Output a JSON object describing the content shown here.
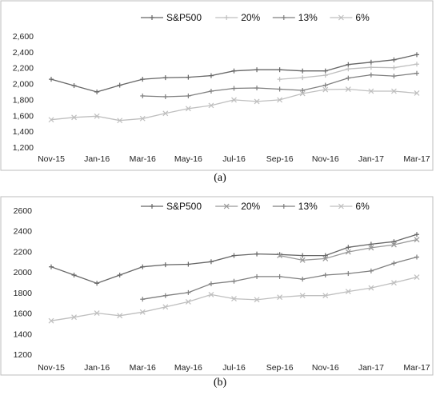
{
  "chart_data": [
    {
      "type": "line",
      "caption": "(a)",
      "x": [
        "Nov-15",
        "Dec-15",
        "Jan-16",
        "Feb-16",
        "Mar-16",
        "Apr-16",
        "May-16",
        "Jun-16",
        "Jul-16",
        "Aug-16",
        "Sep-16",
        "Oct-16",
        "Nov-16",
        "Dec-16",
        "Jan-17",
        "Feb-17",
        "Mar-17"
      ],
      "xticks": [
        "Nov-15",
        "Jan-16",
        "Mar-16",
        "May-16",
        "Jul-16",
        "Sep-16",
        "Nov-16",
        "Jan-17",
        "Mar-17"
      ],
      "ylim": [
        1200,
        2600
      ],
      "yticks": [
        "1,200",
        "1,400",
        "1,600",
        "1,800",
        "2,000",
        "2,200",
        "2,400",
        "2,600"
      ],
      "ytick_values": [
        1200,
        1400,
        1600,
        1800,
        2000,
        2200,
        2400,
        2600
      ],
      "legend_position": "top",
      "series": [
        {
          "name": "S&P500",
          "marker": "plus",
          "color": "#666666",
          "values": [
            2055,
            1975,
            1895,
            1980,
            2055,
            2075,
            2080,
            2100,
            2160,
            2175,
            2175,
            2160,
            2160,
            2240,
            2270,
            2300,
            2365
          ]
        },
        {
          "name": "20%",
          "marker": "plus",
          "color": "#bfbfbf",
          "values": [
            null,
            null,
            null,
            null,
            null,
            null,
            null,
            null,
            null,
            null,
            2055,
            2075,
            2105,
            2185,
            2205,
            2200,
            2245
          ]
        },
        {
          "name": "13%",
          "marker": "plus",
          "color": "#7f7f7f",
          "values": [
            null,
            null,
            null,
            null,
            1845,
            1835,
            1845,
            1905,
            1940,
            1945,
            1930,
            1915,
            1980,
            2070,
            2110,
            2095,
            2130
          ]
        },
        {
          "name": "6%",
          "marker": "x",
          "color": "#bfbfbf",
          "values": [
            1545,
            1575,
            1590,
            1535,
            1560,
            1625,
            1685,
            1725,
            1795,
            1775,
            1795,
            1875,
            1925,
            1930,
            1905,
            1905,
            1880
          ]
        }
      ]
    },
    {
      "type": "line",
      "caption": "(b)",
      "x": [
        "Nov-15",
        "Dec-15",
        "Jan-16",
        "Feb-16",
        "Mar-16",
        "Apr-16",
        "May-16",
        "Jun-16",
        "Jul-16",
        "Aug-16",
        "Sep-16",
        "Oct-16",
        "Nov-16",
        "Dec-16",
        "Jan-17",
        "Feb-17",
        "Mar-17"
      ],
      "xticks": [
        "Nov-15",
        "Jan-16",
        "Mar-16",
        "May-16",
        "Jul-16",
        "Sep-16",
        "Nov-16",
        "Jan-17",
        "Mar-17"
      ],
      "ylim": [
        1200,
        2600
      ],
      "yticks": [
        "1200",
        "1400",
        "1600",
        "1800",
        "2000",
        "2200",
        "2400",
        "2600"
      ],
      "ytick_values": [
        1200,
        1400,
        1600,
        1800,
        2000,
        2200,
        2400,
        2600
      ],
      "legend_position": "top",
      "series": [
        {
          "name": "S&P500",
          "marker": "plus",
          "color": "#666666",
          "values": [
            2050,
            1970,
            1890,
            1970,
            2050,
            2070,
            2075,
            2100,
            2160,
            2175,
            2170,
            2160,
            2160,
            2240,
            2270,
            2295,
            2365
          ]
        },
        {
          "name": "20%",
          "marker": "x",
          "color": "#999999",
          "values": [
            null,
            null,
            null,
            null,
            null,
            null,
            null,
            null,
            null,
            null,
            2160,
            2115,
            2130,
            2195,
            2235,
            2265,
            2315
          ]
        },
        {
          "name": "13%",
          "marker": "plus",
          "color": "#7f7f7f",
          "values": [
            null,
            null,
            null,
            null,
            1735,
            1770,
            1800,
            1885,
            1910,
            1955,
            1955,
            1930,
            1970,
            1985,
            2010,
            2085,
            2145
          ]
        },
        {
          "name": "6%",
          "marker": "x",
          "color": "#bfbfbf",
          "values": [
            1525,
            1560,
            1600,
            1575,
            1610,
            1660,
            1710,
            1780,
            1740,
            1730,
            1755,
            1770,
            1770,
            1810,
            1845,
            1895,
            1950
          ]
        }
      ]
    }
  ]
}
